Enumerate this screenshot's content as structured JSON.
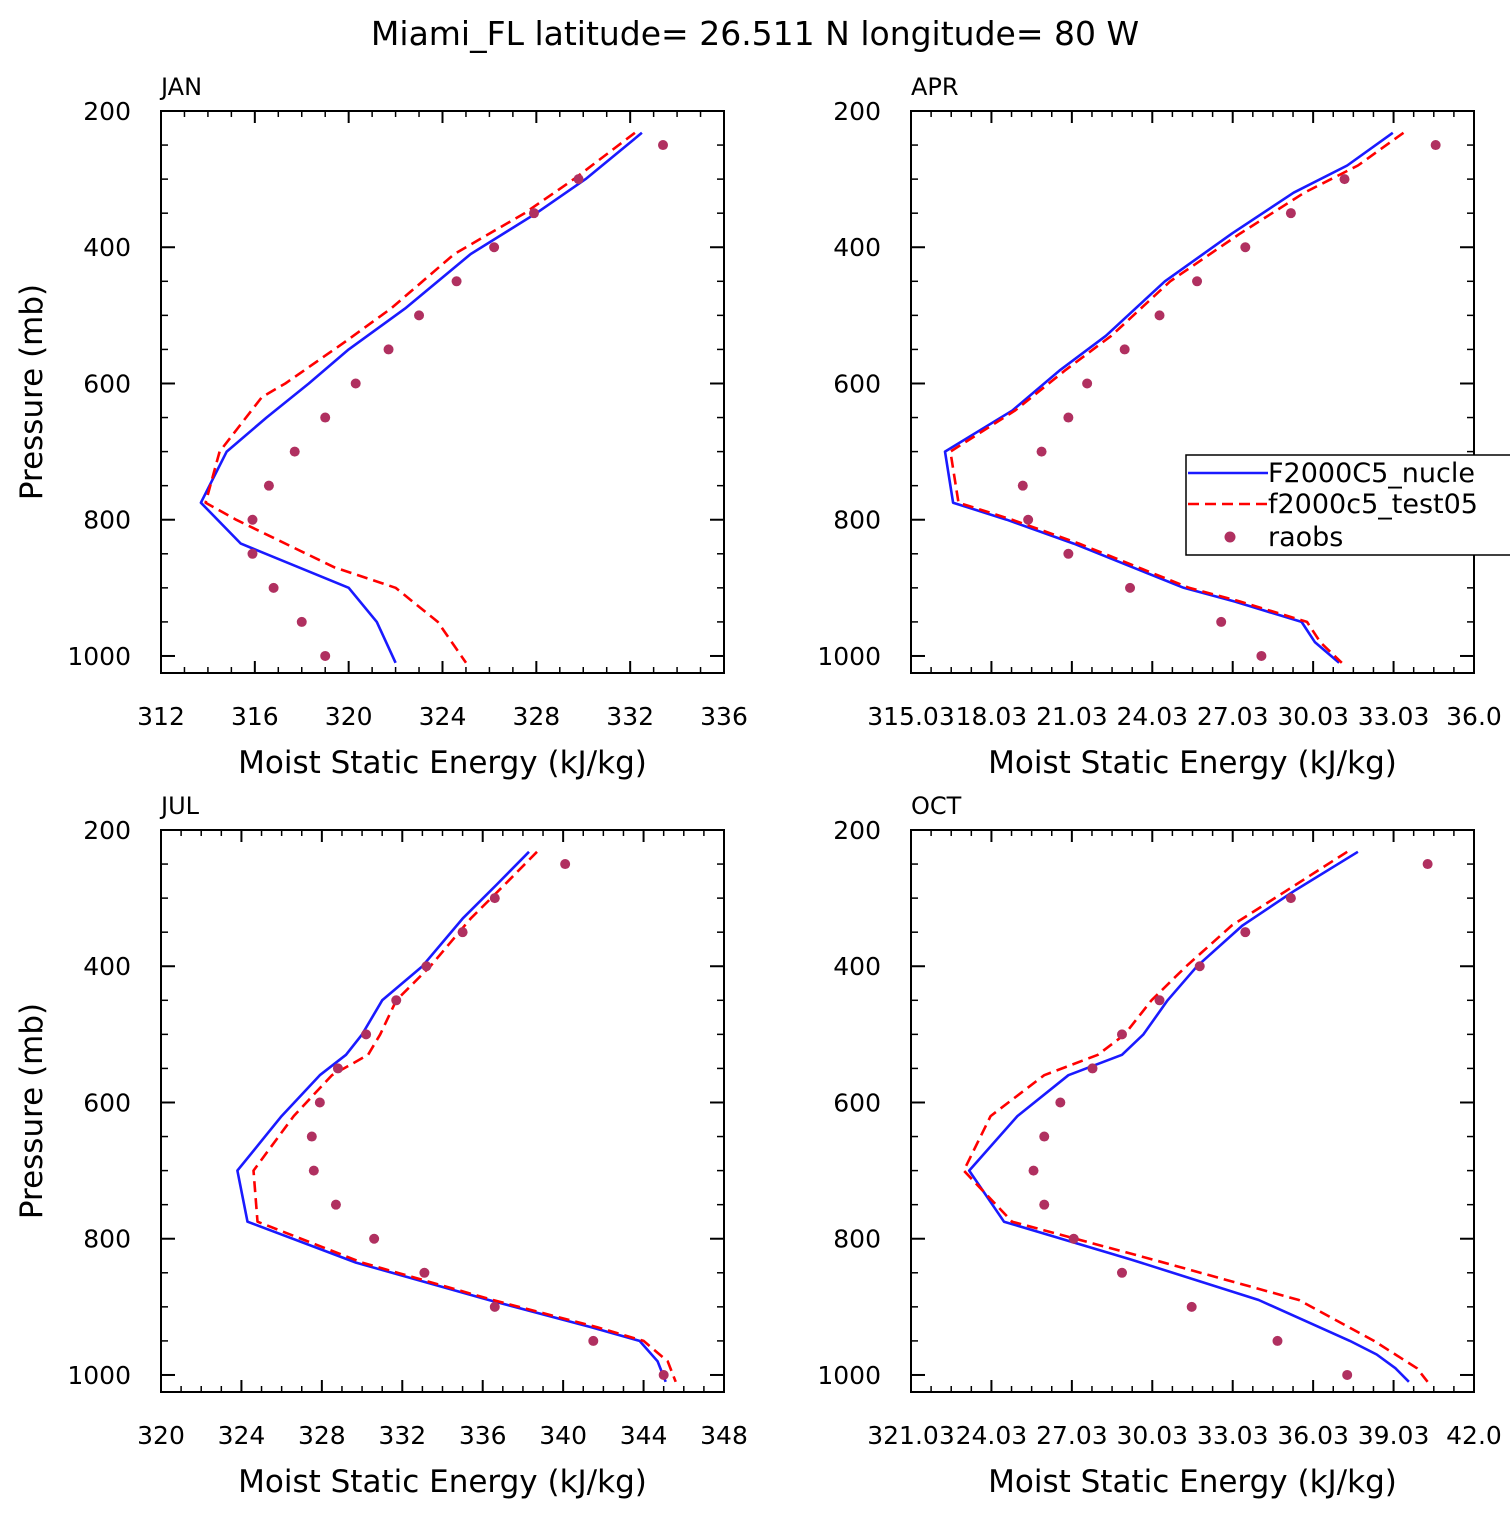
{
  "title": "Miami_FL  latitude= 26.511 N longitude= 80 W",
  "colors": {
    "model1": "#1a1aff",
    "model2": "#ff0000",
    "obs": "#b03060",
    "axis": "#000000"
  },
  "legend": {
    "entries": [
      {
        "label": "F2000C5_nucle",
        "style": "solid-blue"
      },
      {
        "label": "f2000c5_test05",
        "style": "dashed-red"
      },
      {
        "label": "raobs",
        "style": "dot-maroon"
      }
    ]
  },
  "chart_data": [
    {
      "type": "line",
      "panel": "JAN",
      "xlabel": "Moist Static Energy (kJ/kg)",
      "ylabel": "Pressure (mb)",
      "xlim": [
        312,
        336
      ],
      "ylim": [
        1025,
        200
      ],
      "xticks": [
        312,
        316,
        320,
        324,
        328,
        332,
        336
      ],
      "xtick_labels": [
        "312",
        "316",
        "320",
        "324",
        "328",
        "332",
        "336"
      ],
      "yticks": [
        200,
        400,
        600,
        800,
        1000
      ],
      "ytick_labels": [
        "200",
        "400",
        "600",
        "800",
        "1000"
      ],
      "series": [
        {
          "name": "F2000C5_nucle",
          "x": [
            332.5,
            330.1,
            328,
            325.2,
            322.4,
            320,
            318.3,
            316.5,
            314.8,
            313.7,
            315.4,
            320,
            321.2,
            322
          ],
          "y": [
            232,
            300,
            350,
            410,
            490,
            550,
            600,
            650,
            700,
            775,
            835,
            900,
            950,
            1010
          ]
        },
        {
          "name": "f2000c5_test05",
          "x": [
            332.2,
            329.6,
            327.5,
            324.5,
            321.8,
            319.8,
            317.3,
            316.3,
            314.5,
            313.9,
            315.2,
            317,
            319.4,
            322,
            323.8,
            325
          ],
          "y": [
            232,
            300,
            350,
            410,
            490,
            540,
            600,
            620,
            700,
            775,
            800,
            830,
            870,
            900,
            950,
            1010
          ]
        },
        {
          "name": "raobs",
          "x": [
            333.4,
            329.8,
            327.9,
            326.2,
            324.6,
            323,
            321.7,
            320.3,
            319,
            317.7,
            316.6,
            315.9,
            315.9,
            316.8,
            318,
            319
          ],
          "y": [
            250,
            300,
            350,
            400,
            450,
            500,
            550,
            600,
            650,
            700,
            750,
            800,
            850,
            900,
            950,
            1000
          ]
        }
      ]
    },
    {
      "type": "line",
      "panel": "APR",
      "xlabel": "Moist Static Energy (kJ/kg)",
      "ylabel": "",
      "xlim": [
        315.03,
        336.03
      ],
      "ylim": [
        1025,
        200
      ],
      "xticks": [
        315.03,
        318.03,
        321.03,
        324.03,
        327.03,
        330.03,
        333.03,
        336.03
      ],
      "xtick_labels": [
        "315.03",
        "18.03",
        "21.03",
        "24.03",
        "27.03",
        "30.03",
        "33.03",
        "36.0"
      ],
      "yticks": [
        200,
        400,
        600,
        800,
        1000
      ],
      "ytick_labels": [
        "200",
        "400",
        "600",
        "800",
        "1000"
      ],
      "series": [
        {
          "name": "F2000C5_nucle",
          "x": [
            333.0,
            331.3,
            329.3,
            327,
            324.5,
            322.3,
            320.6,
            318.8,
            316.3,
            316.6,
            318.6,
            321.1,
            325.2,
            327.1,
            329.6,
            330.1,
            331.0
          ],
          "y": [
            232,
            280,
            320,
            380,
            450,
            530,
            580,
            640,
            700,
            775,
            800,
            835,
            900,
            920,
            950,
            980,
            1010
          ]
        },
        {
          "name": "f2000c5_test05",
          "x": [
            333.4,
            331.7,
            329.7,
            327.3,
            324.7,
            322.5,
            320.8,
            318.9,
            316.5,
            316.8,
            318.8,
            321.3,
            325.4,
            327.3,
            329.8,
            330.3,
            331.1
          ],
          "y": [
            232,
            280,
            320,
            380,
            450,
            530,
            580,
            640,
            700,
            775,
            800,
            835,
            900,
            920,
            950,
            980,
            1010
          ]
        },
        {
          "name": "raobs",
          "x": [
            334.6,
            331.2,
            329.2,
            327.5,
            325.7,
            324.3,
            323.0,
            321.6,
            320.9,
            319.9,
            319.2,
            319.4,
            320.9,
            323.2,
            326.6,
            328.1
          ],
          "y": [
            250,
            300,
            350,
            400,
            450,
            500,
            550,
            600,
            650,
            700,
            750,
            800,
            850,
            900,
            950,
            1000
          ]
        }
      ]
    },
    {
      "type": "line",
      "panel": "JUL",
      "xlabel": "Moist Static Energy (kJ/kg)",
      "ylabel": "Pressure (mb)",
      "xlim": [
        320,
        348
      ],
      "ylim": [
        1025,
        200
      ],
      "xticks": [
        320,
        324,
        328,
        332,
        336,
        340,
        344,
        348
      ],
      "xtick_labels": [
        "320",
        "324",
        "328",
        "332",
        "336",
        "340",
        "344",
        "348"
      ],
      "yticks": [
        200,
        400,
        600,
        800,
        1000
      ],
      "ytick_labels": [
        "200",
        "400",
        "600",
        "800",
        "1000"
      ],
      "series": [
        {
          "name": "F2000C5_nucle",
          "x": [
            338.3,
            336.7,
            335.0,
            333.0,
            331.0,
            330.0,
            329.2,
            327.9,
            326.0,
            323.8,
            324.3,
            329.7,
            336.3,
            341.4,
            343.8,
            344.7,
            345.1
          ],
          "y": [
            232,
            280,
            330,
            400,
            450,
            500,
            530,
            560,
            620,
            700,
            775,
            835,
            890,
            930,
            950,
            980,
            1010
          ]
        },
        {
          "name": "f2000c5_test05",
          "x": [
            338.7,
            337.1,
            335.4,
            333.4,
            331.7,
            330.9,
            330.3,
            328.5,
            326.6,
            324.6,
            324.8,
            330.0,
            336.5,
            341.7,
            344.0,
            345.2,
            345.6
          ],
          "y": [
            232,
            280,
            330,
            400,
            450,
            500,
            530,
            560,
            620,
            700,
            775,
            835,
            890,
            930,
            950,
            980,
            1010
          ]
        },
        {
          "name": "raobs",
          "x": [
            340.1,
            336.6,
            335.0,
            333.2,
            331.7,
            330.2,
            328.8,
            327.9,
            327.5,
            327.6,
            328.7,
            330.6,
            333.1,
            336.6,
            341.5,
            345.0
          ],
          "y": [
            250,
            300,
            350,
            400,
            450,
            500,
            550,
            600,
            650,
            700,
            750,
            800,
            850,
            900,
            950,
            1000
          ]
        }
      ]
    },
    {
      "type": "line",
      "panel": "OCT",
      "xlabel": "Moist Static Energy (kJ/kg)",
      "ylabel": "",
      "xlim": [
        321.03,
        342.03
      ],
      "ylim": [
        1025,
        200
      ],
      "xticks": [
        321.03,
        324.03,
        327.03,
        330.03,
        333.03,
        336.03,
        339.03,
        342.03
      ],
      "xtick_labels": [
        "321.03",
        "24.03",
        "27.03",
        "30.03",
        "33.03",
        "36.03",
        "39.03",
        "42.0"
      ],
      "yticks": [
        200,
        400,
        600,
        800,
        1000
      ],
      "ytick_labels": [
        "200",
        "400",
        "600",
        "800",
        "1000"
      ],
      "series": [
        {
          "name": "F2000C5_nucle",
          "x": [
            337.7,
            335.3,
            333.4,
            331.7,
            330.6,
            329.7,
            328.9,
            326.9,
            325.0,
            323.2,
            324.5,
            329.2,
            334.0,
            337.4,
            338.4,
            339.1,
            339.6
          ],
          "y": [
            232,
            290,
            340,
            400,
            450,
            500,
            530,
            560,
            620,
            700,
            775,
            830,
            890,
            950,
            970,
            990,
            1010
          ]
        },
        {
          "name": "f2000c5_test05",
          "x": [
            337.3,
            335.0,
            333.0,
            331.3,
            330.0,
            329.0,
            328.0,
            326.0,
            324.0,
            323.0,
            324.8,
            330.0,
            335.5,
            338.3,
            339.1,
            339.9,
            340.3
          ],
          "y": [
            232,
            290,
            340,
            400,
            450,
            500,
            530,
            560,
            620,
            700,
            775,
            830,
            890,
            950,
            970,
            990,
            1010
          ]
        },
        {
          "name": "raobs",
          "x": [
            340.3,
            335.2,
            333.5,
            331.8,
            330.3,
            328.9,
            327.8,
            326.6,
            326.0,
            325.6,
            326.0,
            327.1,
            328.9,
            331.5,
            334.7,
            337.3
          ],
          "y": [
            250,
            300,
            350,
            400,
            450,
            500,
            550,
            600,
            650,
            700,
            750,
            800,
            850,
            900,
            950,
            1000
          ]
        }
      ]
    }
  ]
}
